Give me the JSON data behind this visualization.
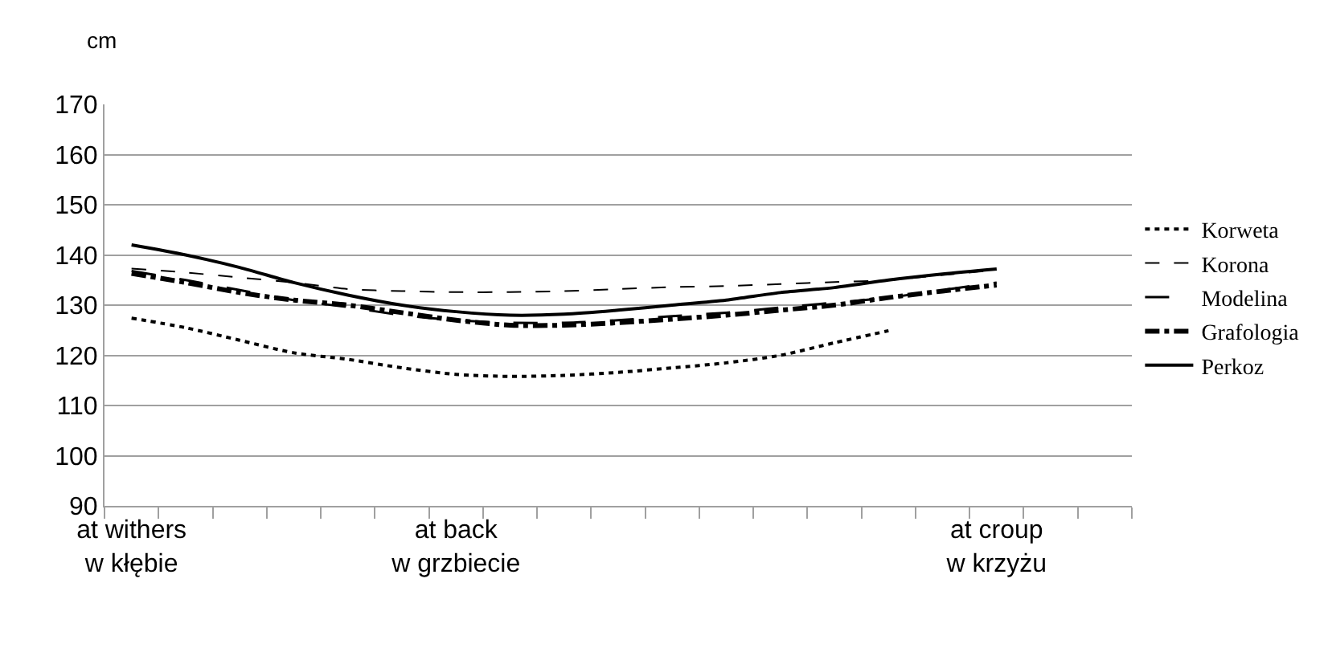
{
  "chart_data": {
    "type": "line",
    "ylabel": "cm",
    "categories": [
      "at withers\nw kłębie",
      null,
      null,
      null,
      null,
      null,
      "at back\nw grzbiecie",
      null,
      null,
      null,
      null,
      null,
      null,
      null,
      null,
      null,
      "at croup\nw krzyżu",
      null,
      null
    ],
    "ylim": [
      90,
      170
    ],
    "yticks": [
      90,
      100,
      110,
      120,
      130,
      140,
      150,
      160,
      170
    ],
    "grid": "y",
    "legend": "right",
    "marker": "none",
    "series": [
      {
        "name": "Korweta",
        "color": "#000000",
        "line_style": "dotted",
        "values": [
          127.4,
          125.5,
          123,
          120.5,
          119.2,
          117.5,
          116.2,
          115.8,
          116,
          116.6,
          117.5,
          118.5,
          120,
          122.5,
          124.9,
          null,
          null,
          null,
          null
        ]
      },
      {
        "name": "Korona",
        "color": "#000000",
        "line_style": "dashed",
        "values": [
          137.3,
          136.5,
          135.5,
          134.5,
          133.2,
          132.8,
          132.6,
          132.6,
          132.8,
          133.2,
          133.6,
          133.8,
          134.2,
          134.6,
          135,
          136,
          137,
          null,
          null
        ]
      },
      {
        "name": "Modelina",
        "color": "#000000",
        "line_style": "dashed",
        "values": [
          136.8,
          135,
          133,
          131,
          129.6,
          128,
          127,
          126.5,
          126.5,
          127,
          127.8,
          128.5,
          129.5,
          130.5,
          131.5,
          133,
          134.5,
          null,
          null
        ]
      },
      {
        "name": "Grafologia",
        "color": "#000000",
        "line_style": "dashed",
        "values": [
          136.3,
          134.5,
          132.5,
          131,
          130,
          128.5,
          127,
          126,
          126,
          126.5,
          127.2,
          128,
          129,
          130,
          131.5,
          132.8,
          134,
          null,
          null
        ]
      },
      {
        "name": "Perkoz",
        "color": "#000000",
        "line_style": "solid",
        "values": [
          142,
          140,
          137.5,
          134.5,
          132,
          130,
          128.7,
          128,
          128.2,
          129,
          130,
          131,
          132.5,
          133.5,
          135,
          136.2,
          137.2,
          null,
          null
        ]
      }
    ]
  }
}
